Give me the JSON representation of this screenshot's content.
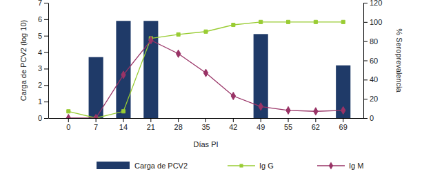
{
  "chart_data": {
    "type": "bar",
    "x_label": "Días PI",
    "y_label": "Carga de PCV2 (log 10)",
    "y2_label": "% Seroprevalencia",
    "categories": [
      "0",
      "7",
      "14",
      "21",
      "28",
      "35",
      "42",
      "49",
      "55",
      "62",
      "69"
    ],
    "ylim": [
      0,
      7
    ],
    "yticks": [
      0,
      1,
      2,
      3,
      4,
      5,
      6,
      7
    ],
    "y2lim": [
      0,
      120
    ],
    "y2ticks": [
      0,
      20,
      40,
      60,
      80,
      100,
      120
    ],
    "legend": "bottom",
    "grid": false,
    "series": [
      {
        "name": "Carga de PCV2",
        "type": "bar",
        "color": "#1f3a68",
        "values": [
          null,
          3.7,
          5.9,
          5.9,
          null,
          null,
          null,
          5.1,
          null,
          null,
          3.2
        ]
      },
      {
        "name": "Ig G",
        "type": "line",
        "axis": "y2",
        "color": "#99cc33",
        "marker": "square",
        "values": [
          7,
          0,
          7,
          83,
          87,
          90,
          97,
          100,
          100,
          100,
          100
        ]
      },
      {
        "name": "Ig M",
        "type": "line",
        "axis": "y2",
        "color": "#993366",
        "marker": "diamond",
        "values": [
          0,
          0,
          45,
          81,
          67,
          47,
          23,
          12,
          8,
          7,
          8
        ]
      }
    ]
  }
}
